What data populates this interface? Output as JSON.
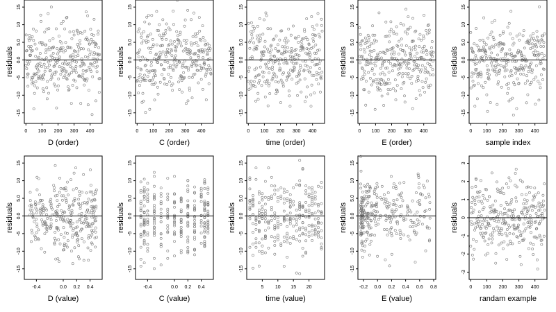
{
  "colors": {
    "point": "#7a7a7a",
    "axis": "#000000",
    "background": "#ffffff"
  },
  "chart_data": [
    {
      "type": "scatter",
      "ylabel": "residuals",
      "xlabel": "D (order)",
      "xlim": [
        -10,
        475
      ],
      "ylim": [
        -18,
        17
      ],
      "xticks": [
        "0",
        "100",
        "200",
        "300",
        "400"
      ],
      "xtick_values": [
        0,
        100,
        200,
        300,
        400
      ],
      "yticks": [
        "-15",
        "-10",
        "-5",
        "0.0",
        "5.0",
        "10",
        "15"
      ],
      "ytick_values": [
        -15,
        -10,
        -5,
        0,
        5,
        10,
        15
      ],
      "reference_line": 0,
      "gen": {
        "type": "order",
        "n": 300,
        "sd": 5.5,
        "seed": 11
      }
    },
    {
      "type": "scatter",
      "ylabel": "residuals",
      "xlabel": "C (order)",
      "xlim": [
        -10,
        475
      ],
      "ylim": [
        -18,
        17
      ],
      "xticks": [
        "0",
        "100",
        "200",
        "300",
        "400"
      ],
      "xtick_values": [
        0,
        100,
        200,
        300,
        400
      ],
      "yticks": [
        "-15",
        "-10",
        "-5",
        "0.0",
        "5.0",
        "10",
        "15"
      ],
      "ytick_values": [
        -15,
        -10,
        -5,
        0,
        5,
        10,
        15
      ],
      "reference_line": 0,
      "gen": {
        "type": "order",
        "n": 300,
        "sd": 5.5,
        "seed": 23
      }
    },
    {
      "type": "scatter",
      "ylabel": "residuals",
      "xlabel": "time (order)",
      "xlim": [
        -10,
        475
      ],
      "ylim": [
        -18,
        17
      ],
      "xticks": [
        "0",
        "100",
        "200",
        "300",
        "400"
      ],
      "xtick_values": [
        0,
        100,
        200,
        300,
        400
      ],
      "yticks": [
        "-15",
        "-10",
        "-5",
        "0.0",
        "5.0",
        "10",
        "15"
      ],
      "ytick_values": [
        -15,
        -10,
        -5,
        0,
        5,
        10,
        15
      ],
      "reference_line": 0,
      "gen": {
        "type": "order",
        "n": 300,
        "sd": 5.5,
        "seed": 37
      }
    },
    {
      "type": "scatter",
      "ylabel": "residuals",
      "xlabel": "E (order)",
      "xlim": [
        -10,
        475
      ],
      "ylim": [
        -18,
        17
      ],
      "xticks": [
        "0",
        "100",
        "200",
        "300",
        "400"
      ],
      "xtick_values": [
        0,
        100,
        200,
        300,
        400
      ],
      "yticks": [
        "-15",
        "-10",
        "-5",
        "0.0",
        "5.0",
        "10",
        "15"
      ],
      "ytick_values": [
        -15,
        -10,
        -5,
        0,
        5,
        10,
        15
      ],
      "reference_line": 0,
      "gen": {
        "type": "order",
        "n": 300,
        "sd": 5.5,
        "seed": 41
      }
    },
    {
      "type": "scatter",
      "ylabel": "residuals",
      "xlabel": "sample index",
      "xlim": [
        -10,
        475
      ],
      "ylim": [
        -18,
        17
      ],
      "xticks": [
        "0",
        "100",
        "200",
        "300",
        "400"
      ],
      "xtick_values": [
        0,
        100,
        200,
        300,
        400
      ],
      "yticks": [
        "-15",
        "-10",
        "-5",
        "0.0",
        "5.0",
        "10",
        "15"
      ],
      "ytick_values": [
        -15,
        -10,
        -5,
        0,
        5,
        10,
        15
      ],
      "reference_line": 0,
      "gen": {
        "type": "order",
        "n": 300,
        "sd": 5.5,
        "seed": 53
      }
    },
    {
      "type": "scatter",
      "ylabel": "residuals",
      "xlabel": "D (value)",
      "xlim": [
        -0.58,
        0.58
      ],
      "ylim": [
        -18,
        17
      ],
      "xticks": [
        "-0.4",
        "0.0",
        "0.2",
        "0.4"
      ],
      "xtick_values": [
        -0.4,
        0.0,
        0.2,
        0.4
      ],
      "yticks": [
        "-15",
        "-10",
        "-5",
        "0.0",
        "5.0",
        "10",
        "15"
      ],
      "ytick_values": [
        -15,
        -10,
        -5,
        0,
        5,
        10,
        15
      ],
      "reference_line": 0,
      "gen": {
        "type": "uniform",
        "n": 300,
        "sd": 5.5,
        "lo": -0.5,
        "hi": 0.5,
        "seed": 61
      }
    },
    {
      "type": "scatter",
      "ylabel": "residuals",
      "xlabel": "C (value)",
      "xlim": [
        -0.58,
        0.58
      ],
      "ylim": [
        -18,
        17
      ],
      "xticks": [
        "-0.4",
        "0.0",
        "0.2",
        "0.4"
      ],
      "xtick_values": [
        -0.4,
        0.0,
        0.2,
        0.4
      ],
      "yticks": [
        "-15",
        "-10",
        "-5",
        "0.0",
        "5.0",
        "10",
        "15"
      ],
      "ytick_values": [
        -15,
        -10,
        -5,
        0,
        5,
        10,
        15
      ],
      "reference_line": 0,
      "gen": {
        "type": "discrete",
        "n": 300,
        "sd": 5.5,
        "levels": [
          -0.5,
          -0.45,
          -0.4,
          -0.3,
          -0.2,
          -0.1,
          0.0,
          0.1,
          0.2,
          0.3,
          0.4,
          0.45,
          0.5
        ],
        "seed": 71
      }
    },
    {
      "type": "scatter",
      "ylabel": "residuals",
      "xlabel": "time (value)",
      "xlim": [
        0,
        25
      ],
      "ylim": [
        -18,
        17
      ],
      "xticks": [
        "5",
        "10",
        "15",
        "20"
      ],
      "xtick_values": [
        5,
        10,
        15,
        20
      ],
      "yticks": [
        "-15",
        "-10",
        "-5",
        "0.0",
        "5.0",
        "10",
        "15"
      ],
      "ytick_values": [
        -15,
        -10,
        -5,
        0,
        5,
        10,
        15
      ],
      "reference_line": 0,
      "gen": {
        "type": "discrete",
        "n": 300,
        "sd": 5.5,
        "levels": [
          1,
          2,
          3,
          4,
          5,
          6,
          7,
          8,
          9,
          10,
          11,
          12,
          13,
          14,
          15,
          16,
          17,
          18,
          19,
          20,
          21,
          22,
          23,
          24
        ],
        "seed": 83
      }
    },
    {
      "type": "scatter",
      "ylabel": "residuals",
      "xlabel": "E (value)",
      "xlim": [
        -0.28,
        0.83
      ],
      "ylim": [
        -18,
        17
      ],
      "xticks": [
        "-0.2",
        "0.0",
        "0.2",
        "0.4",
        "0.6",
        "0.8"
      ],
      "xtick_values": [
        -0.2,
        0.0,
        0.2,
        0.4,
        0.6,
        0.8
      ],
      "yticks": [
        "-15",
        "-10",
        "-5",
        "0.0",
        "5.0",
        "10",
        "15"
      ],
      "ytick_values": [
        -15,
        -10,
        -5,
        0,
        5,
        10,
        15
      ],
      "reference_line": 0,
      "gen": {
        "type": "skew",
        "n": 300,
        "sd": 5.5,
        "lo": -0.24,
        "hi": 0.75,
        "seed": 97
      }
    },
    {
      "type": "scatter",
      "ylabel": "residuals",
      "xlabel": "randam example",
      "xlim": [
        -10,
        475
      ],
      "ylim": [
        -3.4,
        3.4
      ],
      "xticks": [
        "0",
        "100",
        "200",
        "300",
        "400"
      ],
      "xtick_values": [
        0,
        100,
        200,
        300,
        400
      ],
      "yticks": [
        "-3",
        "-2",
        "-1",
        "0",
        "1",
        "2",
        "3"
      ],
      "ytick_values": [
        -3,
        -2,
        -1,
        0,
        1,
        2,
        3
      ],
      "reference_line": 0,
      "gen": {
        "type": "order",
        "n": 300,
        "sd": 1.05,
        "seed": 101
      }
    }
  ]
}
